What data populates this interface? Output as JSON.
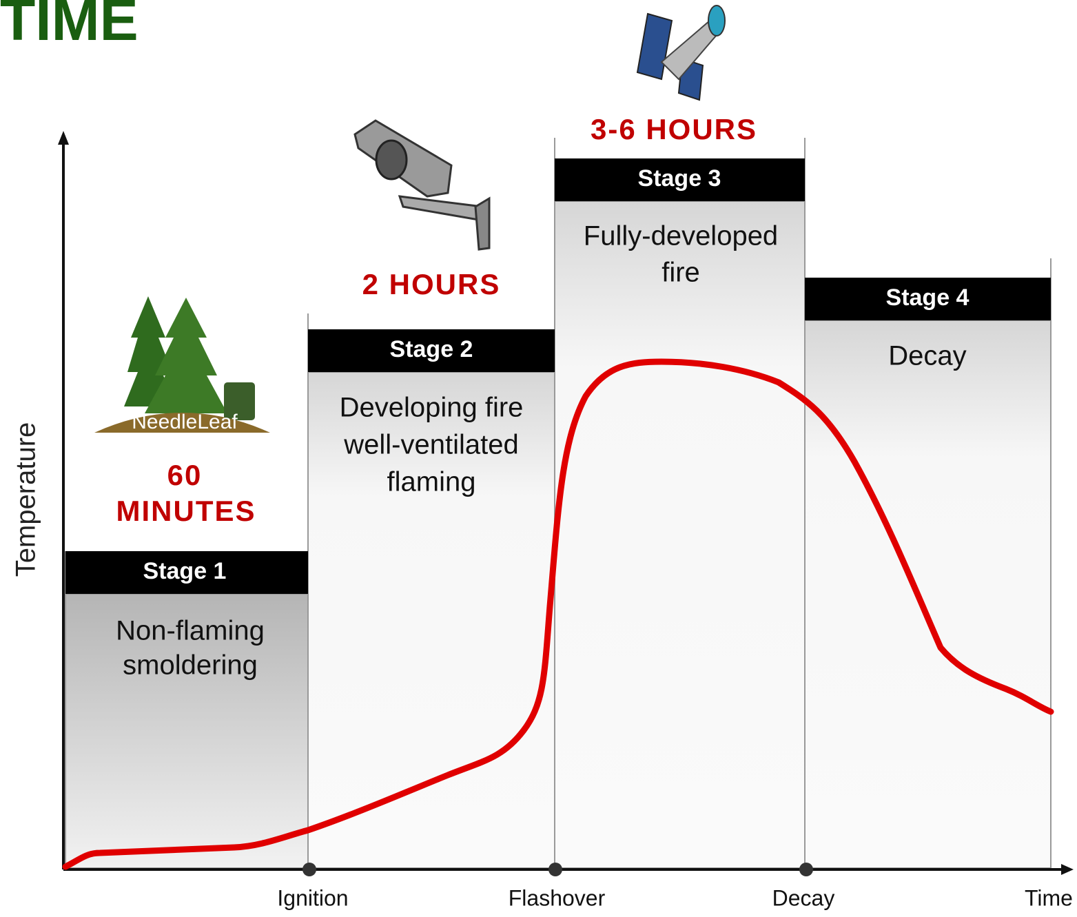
{
  "title": "TIME",
  "y_axis_label": "Temperature",
  "x_axis_label": "Time",
  "markers": [
    "Ignition",
    "Flashover",
    "Decay"
  ],
  "logo": "NeedleLeaf",
  "stages": [
    {
      "label": "Stage 1",
      "description": [
        "Non-flaming",
        "smoldering"
      ],
      "duration": [
        "60",
        "MINUTES"
      ]
    },
    {
      "label": "Stage 2",
      "description": [
        "Developing fire",
        "well-ventilated",
        "flaming"
      ],
      "duration": [
        "2 HOURS"
      ]
    },
    {
      "label": "Stage 3",
      "description": [
        "Fully-developed",
        "fire"
      ],
      "duration": [
        "3-6 HOURS"
      ]
    },
    {
      "label": "Stage 4",
      "description": [
        "Decay"
      ]
    }
  ]
}
